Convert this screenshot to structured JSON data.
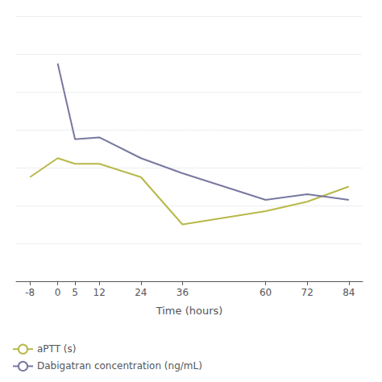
{
  "chart_data": {
    "type": "line",
    "xlabel": "Time (hours)",
    "series": [
      {
        "name": "aPTT (s)",
        "color": "#b8b84a",
        "x": [
          -8,
          0,
          5,
          12,
          24,
          36,
          60,
          72,
          84
        ],
        "values": [
          55,
          65,
          62,
          62,
          55,
          30,
          37,
          42,
          50
        ]
      },
      {
        "name": "Dabigatran concentration (ng/mL)",
        "color": "#7878a0",
        "x": [
          0,
          5,
          12,
          24,
          36,
          60,
          72,
          84
        ],
        "values": [
          115,
          75,
          76,
          65,
          57,
          43,
          46,
          43
        ]
      }
    ],
    "xlim": [
      -12,
      88
    ],
    "xticks": [
      -8,
      0,
      5,
      12,
      24,
      36,
      60,
      72,
      84
    ],
    "ylim": [
      0,
      140
    ],
    "yticks": [
      0,
      20,
      40,
      60,
      80,
      100,
      120,
      140
    ],
    "grid": true,
    "legend": "bottom left",
    "tick_labels": "x"
  }
}
